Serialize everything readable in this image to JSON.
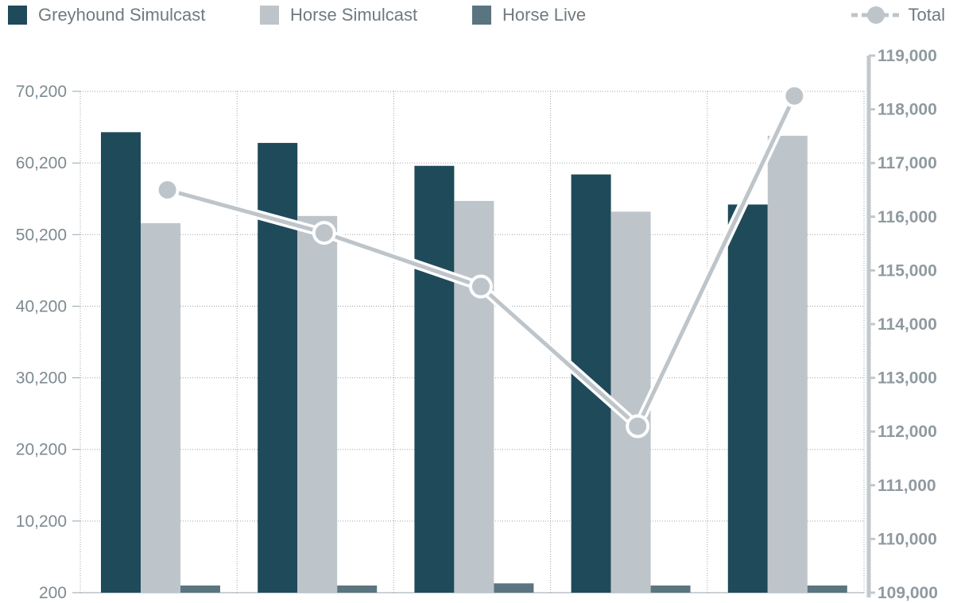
{
  "chart_data": {
    "type": "bar",
    "title": "",
    "xlabel": "",
    "ylabel": "",
    "categories": [
      "",
      "",
      "",
      "",
      ""
    ],
    "series": [
      {
        "name": "Greyhound Simulcast",
        "type": "bar",
        "axis": "left",
        "color": "#1f4a5a",
        "values": [
          64500,
          63000,
          59800,
          58600,
          54400
        ]
      },
      {
        "name": "Horse Simulcast",
        "type": "bar",
        "axis": "left",
        "color": "#bec5ca",
        "values": [
          51800,
          52800,
          54900,
          53400,
          64000
        ]
      },
      {
        "name": "Horse Live",
        "type": "bar",
        "axis": "left",
        "color": "#5a7580",
        "values": [
          1200,
          1200,
          1500,
          1200,
          1200
        ]
      },
      {
        "name": "Total",
        "type": "line",
        "axis": "right",
        "color": "#bec5ca",
        "values": [
          116500,
          115700,
          114700,
          112100,
          118250
        ]
      }
    ],
    "ylim": [
      200,
      70200
    ],
    "yticks": [
      "200",
      "10,200",
      "20,200",
      "30,200",
      "40,200",
      "50,200",
      "60,200",
      "70,200"
    ],
    "ylim_right": [
      109000,
      119000
    ],
    "yticks_right": [
      "109,000",
      "110,000",
      "111,000",
      "112,000",
      "113,000",
      "114,000",
      "115,000",
      "116,000",
      "117,000",
      "118,000",
      "119,000"
    ],
    "grid": true,
    "legend_position": "top"
  }
}
